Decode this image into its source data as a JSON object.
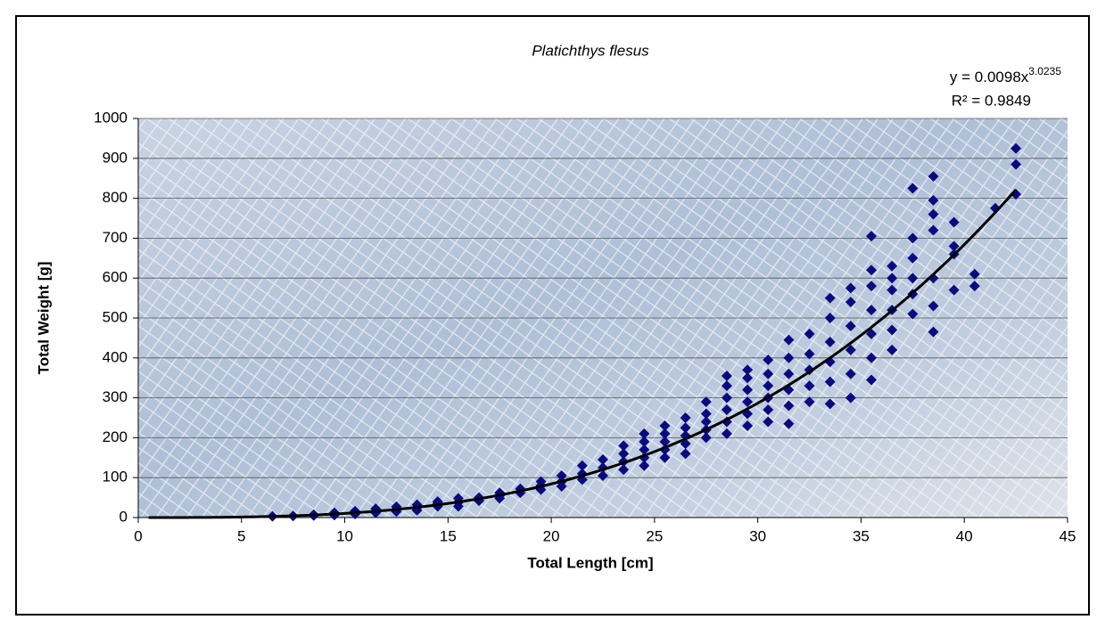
{
  "chart_data": {
    "type": "scatter",
    "title": "Platichthys flesus",
    "x_label": "Total Length [cm]",
    "y_label": "Total Weight [g]",
    "xlim": [
      0,
      45
    ],
    "xticks": [
      0,
      5,
      10,
      15,
      20,
      25,
      30,
      35,
      40,
      45
    ],
    "ylim": [
      0,
      1000
    ],
    "yticks": [
      0,
      100,
      200,
      300,
      400,
      500,
      600,
      700,
      800,
      900,
      1000
    ],
    "grid": true,
    "color": "#0a0a80",
    "trendline": {
      "a": 0.0098,
      "b": 3.0235,
      "xlim": [
        0.5,
        42.5
      ],
      "color": "#000000",
      "equation_label": "y = 0.0098x",
      "exponent_label": "3.0235",
      "r2_label": "R² = 0.9849"
    },
    "x": [
      6.5,
      7.5,
      8.5,
      8.5,
      9.5,
      9.5,
      9.5,
      10.5,
      10.5,
      10.5,
      11.5,
      11.5,
      11.5,
      12.5,
      12.5,
      12.5,
      13.5,
      13.5,
      13.5,
      14.5,
      14.5,
      14.5,
      15.5,
      15.5,
      15.5,
      16.5,
      16.5,
      17.5,
      17.5,
      17.5,
      18.5,
      18.5,
      19.5,
      19.5,
      19.5,
      20.5,
      20.5,
      20.5,
      21.5,
      21.5,
      21.5,
      22.5,
      22.5,
      22.5,
      23.5,
      23.5,
      23.5,
      23.5,
      24.5,
      24.5,
      24.5,
      24.5,
      24.5,
      25.5,
      25.5,
      25.5,
      25.5,
      25.5,
      26.5,
      26.5,
      26.5,
      26.5,
      26.5,
      27.5,
      27.5,
      27.5,
      27.5,
      27.5,
      28.5,
      28.5,
      28.5,
      28.5,
      28.5,
      28.5,
      29.5,
      29.5,
      29.5,
      29.5,
      29.5,
      29.5,
      30.5,
      30.5,
      30.5,
      30.5,
      30.5,
      30.5,
      31.5,
      31.5,
      31.5,
      31.5,
      31.5,
      31.5,
      32.5,
      32.5,
      32.5,
      32.5,
      32.5,
      33.5,
      33.5,
      33.5,
      33.5,
      33.5,
      33.5,
      34.5,
      34.5,
      34.5,
      34.5,
      34.5,
      34.5,
      35.5,
      35.5,
      35.5,
      35.5,
      35.5,
      35.5,
      35.5,
      36.5,
      36.5,
      36.5,
      36.5,
      36.5,
      36.5,
      37.5,
      37.5,
      37.5,
      37.5,
      37.5,
      37.5,
      38.5,
      38.5,
      38.5,
      38.5,
      38.5,
      38.5,
      38.5,
      39.5,
      39.5,
      39.5,
      39.5,
      40.5,
      40.5,
      41.5,
      42.5,
      42.5,
      42.5
    ],
    "values": [
      3,
      4,
      5,
      7,
      6,
      9,
      12,
      9,
      13,
      16,
      12,
      17,
      22,
      15,
      20,
      27,
      18,
      25,
      32,
      28,
      35,
      40,
      28,
      38,
      48,
      42,
      50,
      48,
      55,
      62,
      62,
      72,
      70,
      80,
      90,
      78,
      90,
      105,
      95,
      110,
      130,
      105,
      125,
      145,
      120,
      140,
      160,
      180,
      130,
      150,
      170,
      190,
      210,
      150,
      170,
      190,
      210,
      230,
      160,
      185,
      205,
      225,
      250,
      200,
      220,
      240,
      260,
      290,
      210,
      240,
      270,
      300,
      330,
      355,
      230,
      260,
      290,
      320,
      350,
      370,
      240,
      270,
      300,
      330,
      360,
      395,
      235,
      280,
      320,
      360,
      400,
      445,
      290,
      330,
      370,
      410,
      460,
      285,
      340,
      390,
      440,
      500,
      550,
      300,
      360,
      420,
      480,
      540,
      575,
      345,
      400,
      460,
      520,
      580,
      620,
      705,
      420,
      470,
      520,
      570,
      600,
      630,
      510,
      560,
      600,
      650,
      700,
      825,
      465,
      530,
      600,
      720,
      760,
      795,
      855,
      570,
      660,
      680,
      740,
      580,
      610,
      775,
      810,
      885,
      925
    ]
  }
}
